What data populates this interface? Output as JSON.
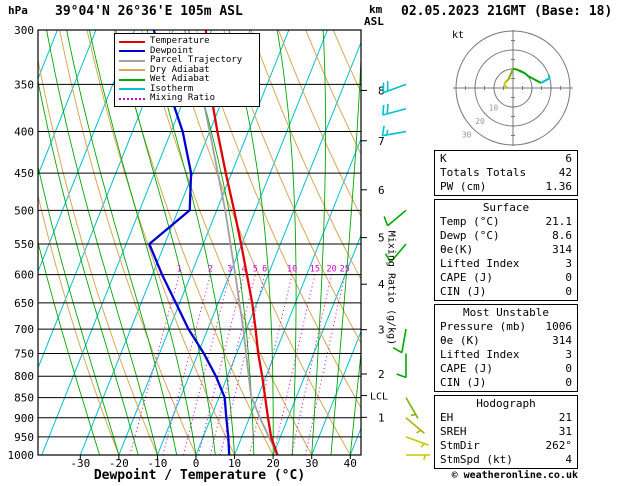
{
  "header": {
    "pressure_unit": "hPa",
    "station": "39°04'N 26°36'E 105m ASL",
    "datetime": "02.05.2023 21GMT (Base: 18)",
    "km_label": "km",
    "asl_label": "ASL",
    "copyright": "© weatheronline.co.uk"
  },
  "axes": {
    "pressure_ticks": [
      300,
      350,
      400,
      450,
      500,
      550,
      600,
      650,
      700,
      750,
      800,
      850,
      900,
      950,
      1000
    ],
    "temp_ticks": [
      -30,
      -20,
      -10,
      0,
      10,
      20,
      30,
      40
    ],
    "xlabel": "Dewpoint / Temperature (°C)",
    "km_ticks": [
      1,
      2,
      3,
      4,
      5,
      6,
      7,
      8
    ],
    "km_tick_pressures": [
      898.8,
      795.0,
      701.1,
      616.4,
      540.2,
      471.8,
      410.6,
      356.0
    ],
    "mixing_ratio_axis_label": "Mixing Ratio (g/kg)",
    "mixing_ratio_values": [
      1,
      2,
      3,
      4,
      5,
      6,
      10,
      15,
      20,
      25
    ],
    "lcl_label": "LCL",
    "lcl_pressure": 845
  },
  "legend": [
    {
      "label": "Temperature",
      "color": "#e00000",
      "style": "solid"
    },
    {
      "label": "Dewpoint",
      "color": "#0000d0",
      "style": "solid"
    },
    {
      "label": "Parcel Trajectory",
      "color": "#a0a0a0",
      "style": "solid"
    },
    {
      "label": "Dry Adiabat",
      "color": "#d8a858",
      "style": "solid"
    },
    {
      "label": "Wet Adiabat",
      "color": "#00a800",
      "style": "solid"
    },
    {
      "label": "Isotherm",
      "color": "#00c0d0",
      "style": "solid"
    },
    {
      "label": "Mixing Ratio",
      "color": "#d000d0",
      "style": "dotted"
    }
  ],
  "chart_data": {
    "type": "line",
    "variant": "skew-t-log-p",
    "pressure_axis_hpa": [
      300,
      1000
    ],
    "temp_axis_c": [
      -40,
      45
    ],
    "series": [
      {
        "name": "Temperature",
        "color": "#e00000",
        "points_p_t": [
          [
            1000,
            21.1
          ],
          [
            950,
            17.6
          ],
          [
            900,
            14.8
          ],
          [
            850,
            12.0
          ],
          [
            800,
            9.0
          ],
          [
            750,
            5.6
          ],
          [
            700,
            2.4
          ],
          [
            650,
            -1.2
          ],
          [
            600,
            -5.5
          ],
          [
            550,
            -10.2
          ],
          [
            500,
            -15.5
          ],
          [
            450,
            -21.5
          ],
          [
            400,
            -28.0
          ],
          [
            350,
            -35.0
          ],
          [
            300,
            -41.5
          ]
        ]
      },
      {
        "name": "Dewpoint",
        "color": "#0000d0",
        "points_p_t": [
          [
            1000,
            8.6
          ],
          [
            950,
            6.5
          ],
          [
            900,
            4.0
          ],
          [
            850,
            1.5
          ],
          [
            800,
            -3.0
          ],
          [
            750,
            -8.5
          ],
          [
            700,
            -15.0
          ],
          [
            650,
            -21.0
          ],
          [
            600,
            -27.5
          ],
          [
            550,
            -34.0
          ],
          [
            500,
            -27.0
          ],
          [
            450,
            -30.5
          ],
          [
            400,
            -37.0
          ],
          [
            350,
            -46.0
          ],
          [
            300,
            -55.0
          ]
        ]
      },
      {
        "name": "Parcel Trajectory",
        "color": "#a0a0a0",
        "points_p_t": [
          [
            1000,
            21.1
          ],
          [
            900,
            12.7
          ],
          [
            845,
            8.1
          ],
          [
            800,
            5.5
          ],
          [
            700,
            -0.8
          ],
          [
            600,
            -8.5
          ],
          [
            500,
            -17.8
          ],
          [
            400,
            -30.0
          ],
          [
            300,
            -46.0
          ]
        ]
      }
    ]
  },
  "wind_barbs": [
    {
      "pressure": 350,
      "dir_deg": 250,
      "speed_kt": 20,
      "color": "#00c0d0"
    },
    {
      "pressure": 375,
      "dir_deg": 255,
      "speed_kt": 20,
      "color": "#00c0d0"
    },
    {
      "pressure": 400,
      "dir_deg": 260,
      "speed_kt": 15,
      "color": "#00c0d0"
    },
    {
      "pressure": 500,
      "dir_deg": 230,
      "speed_kt": 10,
      "color": "#00a800"
    },
    {
      "pressure": 550,
      "dir_deg": 220,
      "speed_kt": 10,
      "color": "#00a800"
    },
    {
      "pressure": 700,
      "dir_deg": 190,
      "speed_kt": 10,
      "color": "#00a800"
    },
    {
      "pressure": 750,
      "dir_deg": 180,
      "speed_kt": 10,
      "color": "#00a800"
    },
    {
      "pressure": 850,
      "dir_deg": 150,
      "speed_kt": 5,
      "color": "#80b000"
    },
    {
      "pressure": 900,
      "dir_deg": 130,
      "speed_kt": 5,
      "color": "#b0b000"
    },
    {
      "pressure": 950,
      "dir_deg": 110,
      "speed_kt": 5,
      "color": "#c8c800"
    },
    {
      "pressure": 1000,
      "dir_deg": 90,
      "speed_kt": 3,
      "color": "#c8c800"
    }
  ],
  "hodograph": {
    "unit_label": "kt",
    "ring_radii_kt": [
      10,
      20,
      30
    ],
    "ring_labels": [
      "10",
      "20",
      "30"
    ]
  },
  "tables": {
    "boxes": [
      {
        "title": "",
        "rows": [
          [
            "K",
            "6"
          ],
          [
            "Totals Totals",
            "42"
          ],
          [
            "PW (cm)",
            "1.36"
          ]
        ]
      },
      {
        "title": "Surface",
        "rows": [
          [
            "Temp (°C)",
            "21.1"
          ],
          [
            "Dewp (°C)",
            "8.6"
          ],
          [
            "θe(K)",
            "314"
          ],
          [
            "Lifted Index",
            "3"
          ],
          [
            "CAPE (J)",
            "0"
          ],
          [
            "CIN (J)",
            "0"
          ]
        ]
      },
      {
        "title": "Most Unstable",
        "rows": [
          [
            "Pressure (mb)",
            "1006"
          ],
          [
            "θe (K)",
            "314"
          ],
          [
            "Lifted Index",
            "3"
          ],
          [
            "CAPE (J)",
            "0"
          ],
          [
            "CIN (J)",
            "0"
          ]
        ]
      },
      {
        "title": "Hodograph",
        "rows": [
          [
            "EH",
            "21"
          ],
          [
            "SREH",
            "31"
          ],
          [
            "StmDir",
            "262°"
          ],
          [
            "StmSpd (kt)",
            "4"
          ]
        ]
      }
    ]
  },
  "colors": {
    "isotherm": "#00c0d0",
    "dry_adiabat": "#d8a858",
    "wet_adiabat": "#00a800",
    "mixing_ratio": "#d000d0",
    "grid": "#000000"
  }
}
